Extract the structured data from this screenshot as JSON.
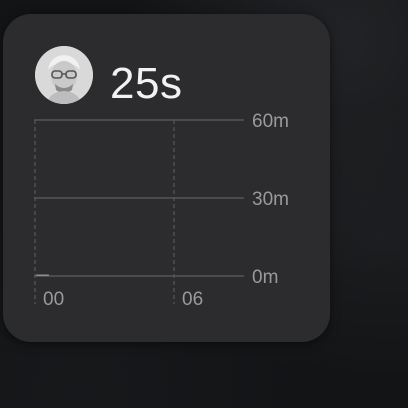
{
  "widget": {
    "duration": "25s"
  },
  "chart_data": {
    "type": "bar",
    "x_tick_labels": [
      "00",
      "06"
    ],
    "y_tick_labels": [
      "60m",
      "30m",
      "0m"
    ],
    "ylim": [
      0,
      60
    ],
    "bars": [
      {
        "hour": 1,
        "minutes": 0.42
      }
    ],
    "colors": {
      "bar": "#8e8e93",
      "grid": "#5e5e62",
      "dashed": "#58585c"
    }
  }
}
